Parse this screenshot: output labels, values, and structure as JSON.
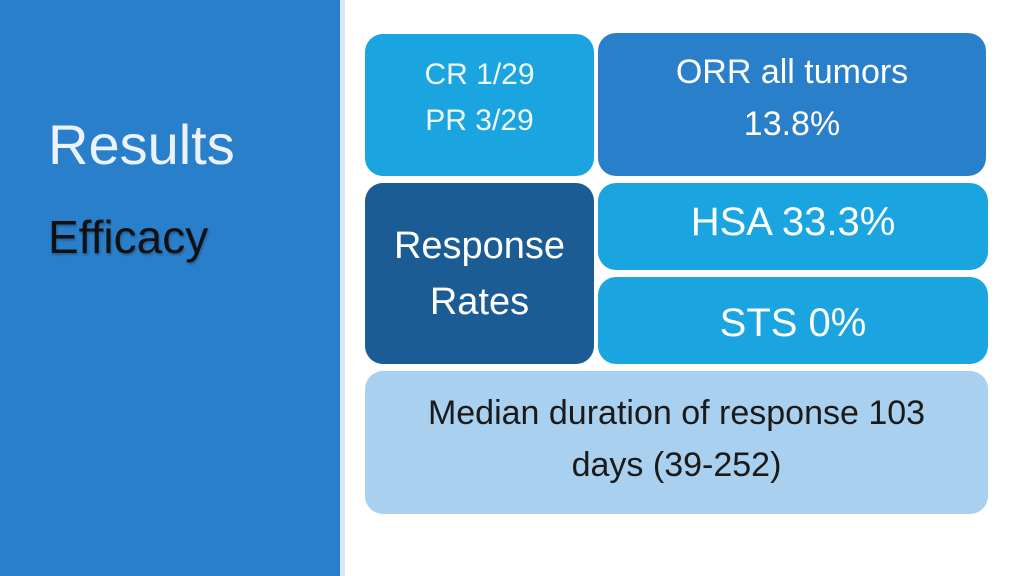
{
  "sidebar": {
    "title": "Results",
    "subtitle": "Efficacy"
  },
  "boxes": {
    "cr": "CR 1/29",
    "pr": "PR 3/29",
    "orr_label": "ORR all tumors",
    "orr_value": "13.8%",
    "response_line1": "Response",
    "response_line2": "Rates",
    "hsa": "HSA 33.3%",
    "sts": "STS 0%",
    "median_line1": "Median duration of response 103",
    "median_line2": "days (39-252)"
  },
  "colors": {
    "sidebar": "#2a7fcb",
    "light_blue": "#1aa5e0",
    "dark_blue": "#1c5c94",
    "pale_blue": "#a9d0ee"
  }
}
